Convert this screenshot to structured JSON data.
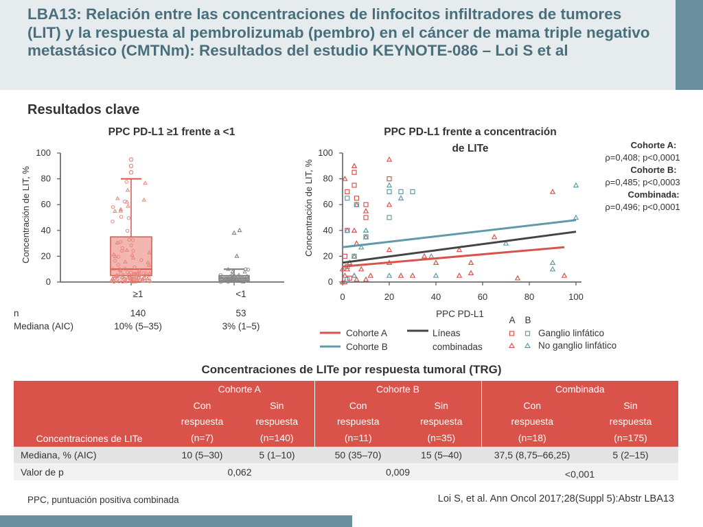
{
  "header": {
    "title": "LBA13: Relación entre las concentraciones de linfocitos infiltradores de tumores (LIT) y la respuesta al pembrolizumab (pembro) en el cáncer de mama triple negativo metastásico (CMTNm): Resultados del estudio KEYNOTE-086 – Loi S et al"
  },
  "section_title": "Resultados clave",
  "colors": {
    "header_text": "#4a6f7c",
    "accent": "#6a8f9c",
    "cohort_a": "#d9534a",
    "cohort_b": "#5f9aa8",
    "combined": "#444444",
    "table_header": "#d9534a"
  },
  "chart_data": [
    {
      "type": "box",
      "title": "PPC PD-L1 ≥1 frente a <1",
      "ylabel": "Concentración de LIT, %",
      "ylim": [
        0,
        100
      ],
      "yticks": [
        "0",
        "20",
        "40",
        "60",
        "80",
        "100"
      ],
      "categories": [
        "≥1",
        "<1"
      ],
      "boxes": [
        {
          "name": "≥1",
          "min": 0,
          "q1": 5,
          "median": 10,
          "q3": 35,
          "max": 80,
          "outliers": [
            85,
            90,
            95
          ]
        },
        {
          "name": "<1",
          "min": 0,
          "q1": 1,
          "median": 3,
          "q3": 5,
          "max": 10,
          "outliers": [
            20,
            38,
            40
          ]
        }
      ],
      "table": {
        "n_label": "n",
        "median_label": "Mediana (AIC)",
        "n": [
          "140",
          "53"
        ],
        "median": [
          "10% (5–35)",
          "3% (1–5)"
        ]
      }
    },
    {
      "type": "scatter",
      "title": "PPC PD-L1 frente a concentración de LITe",
      "xlabel": "PPC PD-L1",
      "ylabel": "Concentración de LIT, %",
      "xlim": [
        0,
        100
      ],
      "ylim": [
        0,
        100
      ],
      "xticks": [
        "0",
        "20",
        "40",
        "60",
        "80",
        "100"
      ],
      "yticks": [
        "0",
        "20",
        "40",
        "60",
        "80",
        "100"
      ],
      "lines": [
        {
          "name": "Cohorte A",
          "x": [
            0,
            95
          ],
          "y": [
            12,
            27
          ]
        },
        {
          "name": "Cohorte B",
          "x": [
            0,
            100
          ],
          "y": [
            27,
            48
          ]
        },
        {
          "name": "Líneas combinadas",
          "x": [
            0,
            100
          ],
          "y": [
            15,
            39
          ]
        }
      ],
      "points": [
        {
          "x": 1,
          "y": 80,
          "c": "A",
          "s": "tri"
        },
        {
          "x": 2,
          "y": 70,
          "c": "A",
          "s": "sq"
        },
        {
          "x": 5,
          "y": 85,
          "c": "A",
          "s": "sq"
        },
        {
          "x": 5,
          "y": 90,
          "c": "A",
          "s": "tri"
        },
        {
          "x": 5,
          "y": 75,
          "c": "A",
          "s": "sq"
        },
        {
          "x": 6,
          "y": 65,
          "c": "A",
          "s": "sq"
        },
        {
          "x": 6,
          "y": 60,
          "c": "A",
          "s": "tri"
        },
        {
          "x": 10,
          "y": 60,
          "c": "A",
          "s": "sq"
        },
        {
          "x": 10,
          "y": 55,
          "c": "A",
          "s": "tri"
        },
        {
          "x": 10,
          "y": 50,
          "c": "A",
          "s": "sq"
        },
        {
          "x": 20,
          "y": 95,
          "c": "A",
          "s": "tri"
        },
        {
          "x": 20,
          "y": 80,
          "c": "A",
          "s": "sq"
        },
        {
          "x": 20,
          "y": 60,
          "c": "A",
          "s": "tri"
        },
        {
          "x": 2,
          "y": 40,
          "c": "A",
          "s": "sq"
        },
        {
          "x": 5,
          "y": 40,
          "c": "A",
          "s": "tri"
        },
        {
          "x": 6,
          "y": 30,
          "c": "A",
          "s": "tri"
        },
        {
          "x": 10,
          "y": 35,
          "c": "A",
          "s": "tri"
        },
        {
          "x": 1,
          "y": 20,
          "c": "A",
          "s": "sq"
        },
        {
          "x": 3,
          "y": 15,
          "c": "A",
          "s": "tri"
        },
        {
          "x": 5,
          "y": 20,
          "c": "A",
          "s": "tri"
        },
        {
          "x": 8,
          "y": 10,
          "c": "A",
          "s": "tri"
        },
        {
          "x": 1,
          "y": 5,
          "c": "A",
          "s": "tri"
        },
        {
          "x": 2,
          "y": 10,
          "c": "A",
          "s": "tri"
        },
        {
          "x": 3,
          "y": 3,
          "c": "A",
          "s": "sq"
        },
        {
          "x": 5,
          "y": 5,
          "c": "A",
          "s": "tri"
        },
        {
          "x": 6,
          "y": 2,
          "c": "A",
          "s": "tri"
        },
        {
          "x": 10,
          "y": 2,
          "c": "A",
          "s": "tri"
        },
        {
          "x": 12,
          "y": 5,
          "c": "A",
          "s": "tri"
        },
        {
          "x": 0,
          "y": 10,
          "c": "A",
          "s": "tri"
        },
        {
          "x": 0,
          "y": 0,
          "c": "A",
          "s": "tri"
        },
        {
          "x": 1,
          "y": 0,
          "c": "A",
          "s": "tri"
        },
        {
          "x": 20,
          "y": 25,
          "c": "A",
          "s": "tri"
        },
        {
          "x": 20,
          "y": 15,
          "c": "A",
          "s": "tri"
        },
        {
          "x": 25,
          "y": 5,
          "c": "A",
          "s": "tri"
        },
        {
          "x": 30,
          "y": 5,
          "c": "A",
          "s": "tri"
        },
        {
          "x": 35,
          "y": 20,
          "c": "A",
          "s": "tri"
        },
        {
          "x": 40,
          "y": 15,
          "c": "A",
          "s": "tri"
        },
        {
          "x": 50,
          "y": 25,
          "c": "A",
          "s": "tri"
        },
        {
          "x": 50,
          "y": 5,
          "c": "A",
          "s": "tri"
        },
        {
          "x": 55,
          "y": 15,
          "c": "A",
          "s": "tri"
        },
        {
          "x": 55,
          "y": 7,
          "c": "A",
          "s": "tri"
        },
        {
          "x": 65,
          "y": 35,
          "c": "A",
          "s": "tri"
        },
        {
          "x": 75,
          "y": 3,
          "c": "A",
          "s": "tri"
        },
        {
          "x": 90,
          "y": 70,
          "c": "A",
          "s": "tri"
        },
        {
          "x": 95,
          "y": 5,
          "c": "A",
          "s": "tri"
        },
        {
          "x": 2,
          "y": 65,
          "c": "B",
          "s": "sq"
        },
        {
          "x": 6,
          "y": 60,
          "c": "B",
          "s": "sq"
        },
        {
          "x": 20,
          "y": 75,
          "c": "B",
          "s": "tri"
        },
        {
          "x": 20,
          "y": 70,
          "c": "B",
          "s": "sq"
        },
        {
          "x": 25,
          "y": 70,
          "c": "B",
          "s": "sq"
        },
        {
          "x": 25,
          "y": 65,
          "c": "B",
          "s": "tri"
        },
        {
          "x": 30,
          "y": 70,
          "c": "B",
          "s": "sq"
        },
        {
          "x": 20,
          "y": 50,
          "c": "B",
          "s": "sq"
        },
        {
          "x": 2,
          "y": 40,
          "c": "B",
          "s": "tri"
        },
        {
          "x": 10,
          "y": 40,
          "c": "B",
          "s": "tri"
        },
        {
          "x": 10,
          "y": 35,
          "c": "B",
          "s": "sq"
        },
        {
          "x": 8,
          "y": 27,
          "c": "B",
          "s": "tri"
        },
        {
          "x": 5,
          "y": 20,
          "c": "B",
          "s": "sq"
        },
        {
          "x": 2,
          "y": 12,
          "c": "B",
          "s": "sq"
        },
        {
          "x": 5,
          "y": 5,
          "c": "B",
          "s": "tri"
        },
        {
          "x": 2,
          "y": 2,
          "c": "B",
          "s": "sq"
        },
        {
          "x": 20,
          "y": 5,
          "c": "B",
          "s": "tri"
        },
        {
          "x": 38,
          "y": 20,
          "c": "B",
          "s": "tri"
        },
        {
          "x": 40,
          "y": 5,
          "c": "B",
          "s": "tri"
        },
        {
          "x": 70,
          "y": 30,
          "c": "B",
          "s": "tri"
        },
        {
          "x": 90,
          "y": 15,
          "c": "B",
          "s": "tri"
        },
        {
          "x": 90,
          "y": 10,
          "c": "B",
          "s": "tri"
        },
        {
          "x": 100,
          "y": 75,
          "c": "B",
          "s": "tri"
        },
        {
          "x": 100,
          "y": 50,
          "c": "B",
          "s": "tri"
        }
      ],
      "correlations": [
        {
          "label": "Cohorte A:",
          "value": "ρ=0,408; p<0,0001"
        },
        {
          "label": "Cohorte B:",
          "value": "ρ=0,485; p<0,0003"
        },
        {
          "label": "Combinada:",
          "value": "ρ=0,496; p<0,0001"
        }
      ],
      "legend": {
        "cohort_a": "Cohorte A",
        "cohort_b": "Cohorte B",
        "combined_line1": "Líneas",
        "combined_line2": "combinadas",
        "col_a": "A",
        "col_b": "B",
        "lymph_node": "Ganglio linfático",
        "no_lymph_node": "No ganglio linfático"
      }
    }
  ],
  "table": {
    "title": "Concentraciones de LITe por respuesta tumoral (TRG)",
    "row_header": "Concentraciones de LITe",
    "groups": [
      "Cohorte A",
      "Cohorte B",
      "Combinada"
    ],
    "subcols": [
      {
        "l1": "Con",
        "l2": "respuesta",
        "n": "(n=7)"
      },
      {
        "l1": "Sin",
        "l2": "respuesta",
        "n": "(n=140)"
      },
      {
        "l1": "Con",
        "l2": "respuesta",
        "n": "(n=11)"
      },
      {
        "l1": "Sin",
        "l2": "respuesta",
        "n": "(n=35)"
      },
      {
        "l1": "Con",
        "l2": "respuesta",
        "n": "(n=18)"
      },
      {
        "l1": "Sin",
        "l2": "respuesta",
        "n": "(n=175)"
      }
    ],
    "median_label": "Mediana, % (AIC)",
    "medians": [
      "10 (5–30)",
      "5 (1–10)",
      "50 (35–70)",
      "15 (5–40)",
      "37,5 (8,75–66,25)",
      "5 (2–15)"
    ],
    "p_label": "Valor de p",
    "p_values": [
      "0,062",
      "0,009",
      "<0,001"
    ]
  },
  "footnote": "PPC, puntuación positiva combinada",
  "citation": "Loi S, et al. Ann Oncol 2017;28(Suppl 5):Abstr LBA13"
}
